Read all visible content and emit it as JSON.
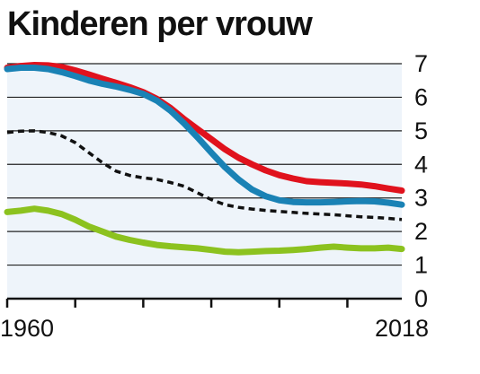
{
  "colors": {
    "background": "#ffffff",
    "plot_background": "#eef4fa",
    "gridline": "#222222",
    "axis": "#111111",
    "text": "#111111"
  },
  "chart_data": {
    "type": "line",
    "title": "Kinderen per vrouw",
    "xlabel": "",
    "ylabel": "",
    "xlim": [
      1960,
      2018
    ],
    "ylim": [
      0,
      7
    ],
    "yticks": [
      0,
      1,
      2,
      3,
      4,
      5,
      6,
      7
    ],
    "x_tick_positions": [
      1960,
      1970,
      1980,
      1990,
      2000,
      2010
    ],
    "x_tick_labels": [
      {
        "x": 1960,
        "label": "1960"
      },
      {
        "x": 2018,
        "label": "2018"
      }
    ],
    "grid": true,
    "legend": "none",
    "series": [
      {
        "color": "#e0121d",
        "style": "solid",
        "x": [
          1960,
          1962,
          1964,
          1966,
          1968,
          1970,
          1972,
          1974,
          1976,
          1978,
          1980,
          1982,
          1984,
          1986,
          1988,
          1990,
          1992,
          1994,
          1996,
          1998,
          2000,
          2002,
          2004,
          2006,
          2008,
          2010,
          2012,
          2014,
          2016,
          2018
        ],
        "y": [
          6.88,
          6.93,
          6.96,
          6.95,
          6.9,
          6.8,
          6.68,
          6.55,
          6.43,
          6.3,
          6.15,
          5.95,
          5.68,
          5.35,
          5.05,
          4.75,
          4.45,
          4.2,
          4.0,
          3.82,
          3.68,
          3.58,
          3.5,
          3.47,
          3.45,
          3.43,
          3.4,
          3.35,
          3.28,
          3.22
        ]
      },
      {
        "color": "#1a82b5",
        "style": "solid",
        "x": [
          1960,
          1962,
          1964,
          1966,
          1968,
          1970,
          1972,
          1974,
          1976,
          1978,
          1980,
          1982,
          1984,
          1986,
          1988,
          1990,
          1992,
          1994,
          1996,
          1998,
          2000,
          2002,
          2004,
          2006,
          2008,
          2010,
          2012,
          2014,
          2016,
          2018
        ],
        "y": [
          6.84,
          6.88,
          6.88,
          6.84,
          6.75,
          6.63,
          6.5,
          6.4,
          6.32,
          6.22,
          6.1,
          5.9,
          5.6,
          5.22,
          4.8,
          4.35,
          3.92,
          3.55,
          3.25,
          3.05,
          2.93,
          2.88,
          2.87,
          2.87,
          2.88,
          2.9,
          2.91,
          2.9,
          2.86,
          2.8
        ]
      },
      {
        "color": "#111111",
        "style": "dashed",
        "x": [
          1960,
          1962,
          1964,
          1966,
          1968,
          1970,
          1972,
          1974,
          1976,
          1978,
          1980,
          1982,
          1984,
          1986,
          1988,
          1990,
          1992,
          1994,
          1996,
          1998,
          2000,
          2002,
          2004,
          2006,
          2008,
          2010,
          2012,
          2014,
          2016,
          2018
        ],
        "y": [
          4.95,
          4.99,
          5.0,
          4.95,
          4.85,
          4.65,
          4.35,
          4.05,
          3.8,
          3.67,
          3.6,
          3.55,
          3.46,
          3.35,
          3.15,
          2.95,
          2.8,
          2.72,
          2.67,
          2.63,
          2.6,
          2.57,
          2.54,
          2.52,
          2.5,
          2.47,
          2.44,
          2.42,
          2.39,
          2.36
        ]
      },
      {
        "color": "#8cc21f",
        "style": "solid",
        "x": [
          1960,
          1962,
          1964,
          1966,
          1968,
          1970,
          1972,
          1974,
          1976,
          1978,
          1980,
          1982,
          1984,
          1986,
          1988,
          1990,
          1992,
          1994,
          1996,
          1998,
          2000,
          2002,
          2004,
          2006,
          2008,
          2010,
          2012,
          2014,
          2016,
          2018
        ],
        "y": [
          2.58,
          2.62,
          2.68,
          2.62,
          2.52,
          2.35,
          2.15,
          2.0,
          1.85,
          1.75,
          1.67,
          1.6,
          1.56,
          1.53,
          1.5,
          1.45,
          1.4,
          1.38,
          1.4,
          1.42,
          1.43,
          1.45,
          1.48,
          1.52,
          1.55,
          1.52,
          1.5,
          1.5,
          1.52,
          1.48
        ]
      }
    ]
  }
}
